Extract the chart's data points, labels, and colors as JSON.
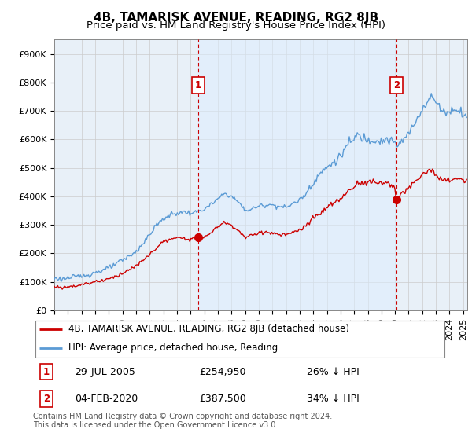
{
  "title": "4B, TAMARISK AVENUE, READING, RG2 8JB",
  "subtitle": "Price paid vs. HM Land Registry's House Price Index (HPI)",
  "hpi_label": "HPI: Average price, detached house, Reading",
  "property_label": "4B, TAMARISK AVENUE, READING, RG2 8JB (detached house)",
  "footer": "Contains HM Land Registry data © Crown copyright and database right 2024.\nThis data is licensed under the Open Government Licence v3.0.",
  "sale1_label": "29-JUL-2005",
  "sale1_price": "£254,950",
  "sale1_hpi": "26% ↓ HPI",
  "sale2_label": "04-FEB-2020",
  "sale2_price": "£387,500",
  "sale2_hpi": "34% ↓ HPI",
  "hpi_color": "#5b9bd5",
  "hpi_fill_color": "#ddeeff",
  "property_color": "#cc0000",
  "sale_marker_color": "#cc0000",
  "vline_color": "#cc0000",
  "grid_color": "#cccccc",
  "background_color": "#ffffff",
  "plot_bg_color": "#e8f0f8",
  "ylim": [
    0,
    950000
  ],
  "yticks": [
    0,
    100000,
    200000,
    300000,
    400000,
    500000,
    600000,
    700000,
    800000,
    900000
  ],
  "ytick_labels": [
    "£0",
    "£100K",
    "£200K",
    "£300K",
    "£400K",
    "£500K",
    "£600K",
    "£700K",
    "£800K",
    "£900K"
  ],
  "sale1_x": 2005.57,
  "sale1_y": 254950,
  "sale2_x": 2020.09,
  "sale2_y": 387500,
  "xlim_start": 1995,
  "xlim_end": 2025.3,
  "title_fontsize": 11,
  "subtitle_fontsize": 9.5,
  "tick_fontsize": 8,
  "footer_fontsize": 7,
  "legend_fontsize": 9
}
